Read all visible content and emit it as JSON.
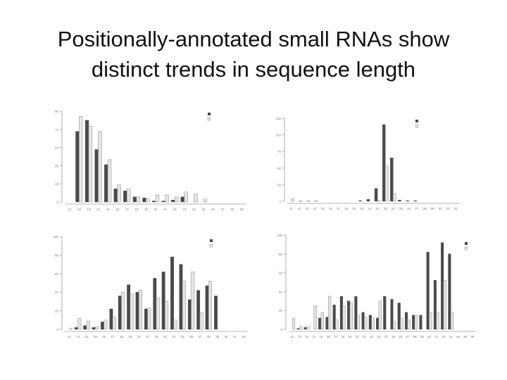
{
  "slide": {
    "title_line1": "Positionally-annotated small RNAs show",
    "title_line2": "distinct trends in sequence length"
  },
  "colors": {
    "dark": "#4a4a4a",
    "light": "#e4e4e4",
    "light_stroke": "#8c8c8c",
    "axis": "#9a9a9a"
  },
  "chart_data": [
    {
      "type": "bar",
      "categories": [
        "11",
        "12",
        "13",
        "14",
        "15",
        "16",
        "17",
        "18",
        "19",
        "20",
        "21",
        "22",
        "23",
        "24",
        "25",
        "26",
        "27",
        "28",
        "29"
      ],
      "series": [
        {
          "values": [
            0,
            70,
            81,
            52,
            37,
            13,
            11,
            5,
            4,
            1,
            1,
            2,
            5,
            0,
            0,
            0,
            0,
            0,
            0
          ]
        },
        {
          "values": [
            0,
            85,
            75,
            70,
            42,
            17,
            13,
            5,
            3,
            7,
            7,
            5,
            10,
            8,
            3,
            0,
            0,
            0,
            0
          ]
        }
      ],
      "ylim": [
        0,
        90
      ],
      "xlabel": "",
      "ylabel": ""
    },
    {
      "type": "bar",
      "categories": [
        "11",
        "12",
        "13",
        "14",
        "15",
        "16",
        "17",
        "18",
        "19",
        "20",
        "21",
        "22",
        "23",
        "24",
        "25",
        "26",
        "27",
        "28",
        "29",
        "30",
        "31",
        "32"
      ],
      "series": [
        {
          "values": [
            0,
            0,
            0,
            0,
            0,
            0,
            0,
            0,
            0,
            1,
            3,
            20,
            120,
            68,
            2,
            1,
            1,
            0,
            0,
            0,
            0,
            0
          ]
        },
        {
          "values": [
            4,
            1,
            1,
            1,
            0,
            0,
            0,
            0,
            0,
            0,
            0,
            1,
            55,
            12,
            0,
            0,
            0,
            0,
            0,
            0,
            0,
            0
          ]
        }
      ],
      "ylim": [
        0,
        130
      ],
      "xlabel": "",
      "ylabel": ""
    },
    {
      "type": "bar",
      "categories": [
        "12",
        "13",
        "14",
        "15",
        "16",
        "17",
        "18",
        "19",
        "20",
        "21",
        "22",
        "23",
        "24",
        "25",
        "26",
        "27",
        "28",
        "29",
        "30",
        "31",
        "32"
      ],
      "series": [
        {
          "values": [
            0,
            2,
            4,
            2,
            8,
            22,
            36,
            48,
            40,
            22,
            55,
            62,
            78,
            70,
            32,
            42,
            47,
            36,
            0,
            0,
            0
          ]
        },
        {
          "values": [
            1,
            12,
            9,
            3,
            10,
            13,
            40,
            38,
            42,
            23,
            34,
            30,
            10,
            52,
            62,
            18,
            52,
            0,
            0,
            0,
            0
          ]
        }
      ],
      "ylim": [
        0,
        100
      ],
      "xlabel": "",
      "ylabel": ""
    },
    {
      "type": "bar",
      "categories": [
        "11",
        "12",
        "13",
        "14",
        "15",
        "16",
        "17",
        "18",
        "19",
        "20",
        "21",
        "22",
        "23",
        "24",
        "25",
        "26",
        "27",
        "28",
        "29",
        "30",
        "31",
        "32",
        "33",
        "34",
        "35",
        "36"
      ],
      "series": [
        {
          "values": [
            0,
            1,
            2,
            0,
            12,
            13,
            26,
            35,
            30,
            35,
            18,
            15,
            12,
            35,
            32,
            28,
            18,
            15,
            15,
            82,
            52,
            92,
            80,
            0,
            0,
            0
          ]
        },
        {
          "values": [
            12,
            3,
            3,
            25,
            18,
            35,
            10,
            25,
            28,
            15,
            13,
            12,
            30,
            0,
            8,
            12,
            10,
            15,
            0,
            18,
            18,
            52,
            18,
            0,
            0,
            0
          ]
        }
      ],
      "ylim": [
        0,
        100
      ],
      "xlabel": "",
      "ylabel": ""
    }
  ]
}
